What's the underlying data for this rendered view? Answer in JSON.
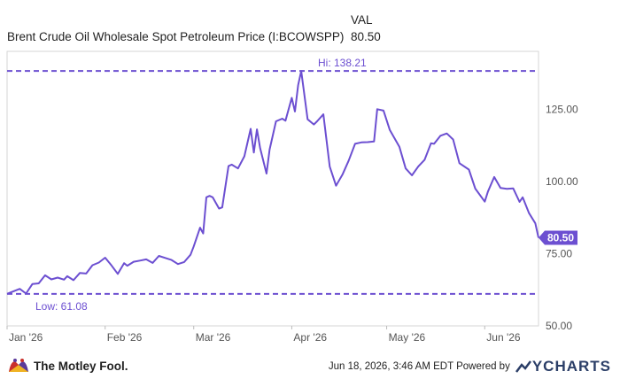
{
  "legend": {
    "header": "VAL",
    "series_name": "Brent Crude Oil Wholesale Spot Petroleum Price (I:BCOWSPP)",
    "latest_value": "80.50"
  },
  "chart_data": {
    "type": "line",
    "series": [
      {
        "name": "Brent Crude Oil Wholesale Spot Petroleum Price (I:BCOWSPP)",
        "color": "#6c4fd1",
        "x": [
          "2026-01-01",
          "2026-01-05",
          "2026-01-07",
          "2026-01-09",
          "2026-01-11",
          "2026-01-13",
          "2026-01-15",
          "2026-01-17",
          "2026-01-19",
          "2026-01-20",
          "2026-01-22",
          "2026-01-24",
          "2026-01-26",
          "2026-01-28",
          "2026-01-30",
          "2026-02-01",
          "2026-02-03",
          "2026-02-05",
          "2026-02-07",
          "2026-02-08",
          "2026-02-10",
          "2026-02-12",
          "2026-02-14",
          "2026-02-16",
          "2026-02-18",
          "2026-02-20",
          "2026-02-22",
          "2026-02-24",
          "2026-02-26",
          "2026-02-28",
          "2026-03-01",
          "2026-03-03",
          "2026-03-04",
          "2026-03-05",
          "2026-03-06",
          "2026-03-07",
          "2026-03-09",
          "2026-03-10",
          "2026-03-12",
          "2026-03-13",
          "2026-03-15",
          "2026-03-17",
          "2026-03-19",
          "2026-03-20",
          "2026-03-21",
          "2026-03-22",
          "2026-03-24",
          "2026-03-25",
          "2026-03-27",
          "2026-03-29",
          "2026-03-30",
          "2026-04-01",
          "2026-04-02",
          "2026-04-03",
          "2026-04-04",
          "2026-04-06",
          "2026-04-08",
          "2026-04-09",
          "2026-04-11",
          "2026-04-13",
          "2026-04-15",
          "2026-04-17",
          "2026-04-19",
          "2026-04-21",
          "2026-04-23",
          "2026-04-25",
          "2026-04-27",
          "2026-04-28",
          "2026-04-30",
          "2026-05-02",
          "2026-05-05",
          "2026-05-07",
          "2026-05-09",
          "2026-05-11",
          "2026-05-13",
          "2026-05-15",
          "2026-05-16",
          "2026-05-18",
          "2026-05-20",
          "2026-05-22",
          "2026-05-24",
          "2026-05-27",
          "2026-05-29",
          "2026-06-01",
          "2026-06-02",
          "2026-06-04",
          "2026-06-06",
          "2026-06-08",
          "2026-06-10",
          "2026-06-12",
          "2026-06-13",
          "2026-06-15",
          "2026-06-17",
          "2026-06-18"
        ],
        "values": [
          61.08,
          62.8,
          61.2,
          64.5,
          64.7,
          67.5,
          66.1,
          66.7,
          66.0,
          67.2,
          65.8,
          68.3,
          68.1,
          71.0,
          71.9,
          73.6,
          70.9,
          68.0,
          71.7,
          70.8,
          72.2,
          72.6,
          73.0,
          71.8,
          74.2,
          73.5,
          72.8,
          71.4,
          72.1,
          74.6,
          77.5,
          84.0,
          82.0,
          94.5,
          95.0,
          94.5,
          90.6,
          91.0,
          105.3,
          105.8,
          104.5,
          108.7,
          118.2,
          110.0,
          118.0,
          111.5,
          102.7,
          111.0,
          120.8,
          121.7,
          121.0,
          128.9,
          124.2,
          133.3,
          138.21,
          121.5,
          119.7,
          120.8,
          123.2,
          105.1,
          98.5,
          102.3,
          107.2,
          113.0,
          113.5,
          113.6,
          113.8,
          125.0,
          124.5,
          117.8,
          112.0,
          104.5,
          102.1,
          105.2,
          107.5,
          113.2,
          113.0,
          115.8,
          116.6,
          114.5,
          106.3,
          104.1,
          97.5,
          93.0,
          96.5,
          101.5,
          97.7,
          97.4,
          97.6,
          92.9,
          94.5,
          89.0,
          85.5,
          80.5
        ]
      }
    ],
    "x_ticks": [
      "Jan '26",
      "Feb '26",
      "Mar '26",
      "Apr '26",
      "May '26",
      "Jun '26"
    ],
    "y_ticks": [
      "50.00",
      "75.00",
      "100.00",
      "125.00"
    ],
    "ylim": [
      50,
      145
    ],
    "reference_lines": [
      {
        "label": "Hi: 138.21",
        "value": 138.21
      },
      {
        "label": "Low: 61.08",
        "value": 61.08
      }
    ],
    "last_value_label": "80.50",
    "grid": false,
    "axis_position": "right"
  },
  "footer": {
    "brand": "The Motley Fool.",
    "timestamp": "Jun 18, 2026, 3:46 AM EDT  Powered by",
    "provider": "YCHARTS"
  }
}
